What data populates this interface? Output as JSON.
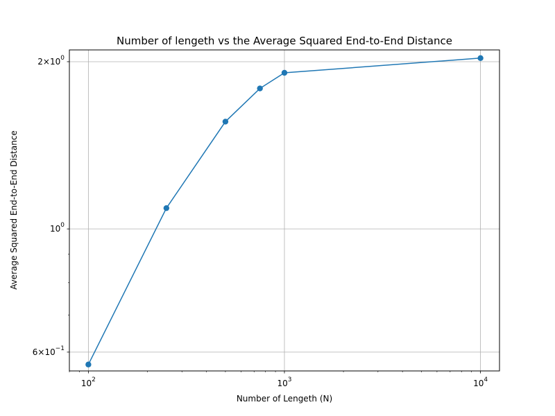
{
  "chart_data": {
    "type": "line",
    "title": "Number of lengeth vs the Average Squared End-to-End Distance",
    "xlabel": "Number of Lengeth (N)",
    "ylabel": "Average Squared End-to-End Distance",
    "x_scale": "log",
    "y_scale": "log",
    "xlim": [
      80,
      12500
    ],
    "ylim": [
      0.555,
      2.1
    ],
    "grid": true,
    "x_ticks": [
      {
        "value": 100,
        "base": "10",
        "exp": "2"
      },
      {
        "value": 1000,
        "base": "10",
        "exp": "3"
      },
      {
        "value": 10000,
        "base": "10",
        "exp": "4"
      }
    ],
    "y_ticks": [
      {
        "value": 0.6,
        "base": "6×10",
        "exp": "−1"
      },
      {
        "value": 1.0,
        "base": "10",
        "exp": "0"
      },
      {
        "value": 2.0,
        "base": "2×10",
        "exp": "0"
      }
    ],
    "series": [
      {
        "color": "#1f77b4",
        "x": [
          100,
          250,
          500,
          750,
          1000,
          10000
        ],
        "y": [
          0.57,
          1.09,
          1.56,
          1.79,
          1.91,
          2.03
        ]
      }
    ]
  }
}
